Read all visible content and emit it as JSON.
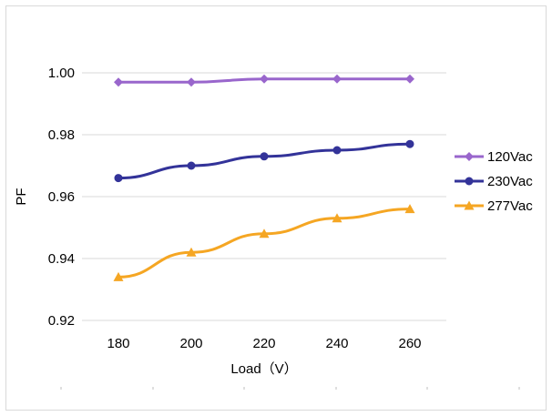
{
  "chart_data": {
    "type": "line",
    "x": [
      180,
      200,
      220,
      240,
      260
    ],
    "series": [
      {
        "name": "120Vac",
        "values": [
          0.997,
          0.997,
          0.998,
          0.998,
          0.998
        ],
        "color": "#9966CC",
        "marker": "diamond"
      },
      {
        "name": "230Vac",
        "values": [
          0.966,
          0.97,
          0.973,
          0.975,
          0.977
        ],
        "color": "#333399",
        "marker": "circle"
      },
      {
        "name": "277Vac",
        "values": [
          0.934,
          0.942,
          0.948,
          0.953,
          0.956
        ],
        "color": "#F5A623",
        "marker": "triangle"
      }
    ],
    "xlabel": "Load（V）",
    "ylabel": "PF",
    "ylim": [
      0.92,
      1.0
    ],
    "yticks": [
      "0.92",
      "0.94",
      "0.96",
      "0.98",
      "1.00"
    ],
    "xticks": [
      "180",
      "200",
      "220",
      "240",
      "260"
    ],
    "grid": "horizontal",
    "legend": "right"
  }
}
